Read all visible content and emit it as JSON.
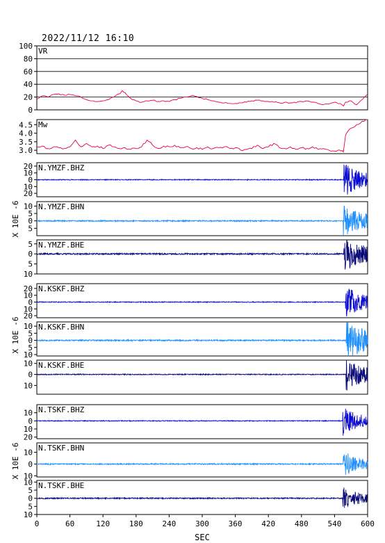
{
  "timestamp": "2022/11/12 16:10",
  "chart_data": {
    "type": "line",
    "xlabel": "SEC",
    "xlim": [
      0,
      600
    ],
    "xticks": [
      0,
      60,
      120,
      180,
      240,
      300,
      360,
      420,
      480,
      540,
      600
    ],
    "unit_label": "X 10E -6",
    "panels": [
      {
        "label": "VR",
        "kind": "vr",
        "ylim": [
          0,
          100
        ],
        "yticks": [
          0,
          20,
          40,
          60,
          80,
          100
        ],
        "color": "#e8003a",
        "grid": true,
        "series": {
          "x": [
            0,
            10,
            20,
            30,
            40,
            50,
            60,
            70,
            80,
            90,
            100,
            110,
            120,
            130,
            140,
            150,
            155,
            160,
            170,
            180,
            190,
            200,
            210,
            220,
            230,
            240,
            250,
            260,
            270,
            280,
            290,
            300,
            310,
            320,
            330,
            340,
            350,
            360,
            370,
            380,
            390,
            400,
            410,
            420,
            430,
            440,
            450,
            460,
            470,
            480,
            490,
            500,
            510,
            520,
            530,
            540,
            550,
            556,
            560,
            570,
            580,
            590,
            600
          ],
          "y": [
            17,
            22,
            20,
            24,
            25,
            23,
            24,
            22,
            20,
            16,
            14,
            13,
            14,
            16,
            20,
            25,
            30,
            27,
            18,
            14,
            12,
            14,
            15,
            13,
            14,
            13,
            16,
            18,
            20,
            22,
            21,
            18,
            16,
            14,
            12,
            11,
            10,
            10,
            11,
            12,
            14,
            15,
            14,
            13,
            12,
            11,
            12,
            11,
            11,
            13,
            14,
            12,
            10,
            8,
            9,
            12,
            10,
            6,
            12,
            14,
            8,
            16,
            24
          ]
        }
      },
      {
        "label": "Mw",
        "kind": "mw",
        "ylim": [
          2.8,
          4.8
        ],
        "yticks": [
          3.0,
          3.5,
          4.0,
          4.5
        ],
        "ytick_labels": [
          "3.0",
          "3.5",
          "4.0",
          "4.5"
        ],
        "color": "#e8003a",
        "series": {
          "x": [
            0,
            10,
            20,
            30,
            40,
            50,
            60,
            70,
            80,
            90,
            100,
            110,
            120,
            130,
            140,
            150,
            160,
            170,
            180,
            190,
            200,
            210,
            220,
            230,
            240,
            250,
            260,
            270,
            280,
            290,
            300,
            310,
            320,
            330,
            340,
            350,
            360,
            370,
            380,
            390,
            400,
            410,
            420,
            430,
            440,
            450,
            460,
            470,
            480,
            490,
            500,
            510,
            520,
            530,
            540,
            550,
            556,
            560,
            570,
            580,
            590,
            600
          ],
          "y": [
            3.2,
            3.25,
            3.1,
            3.2,
            3.15,
            3.1,
            3.2,
            3.6,
            3.2,
            3.4,
            3.2,
            3.25,
            3.1,
            3.3,
            3.2,
            3.1,
            3.15,
            3.05,
            3.1,
            3.2,
            3.6,
            3.3,
            3.1,
            3.25,
            3.2,
            3.3,
            3.15,
            3.2,
            3.1,
            3.15,
            3.05,
            3.2,
            3.1,
            3.15,
            3.2,
            3.1,
            3.15,
            3.0,
            3.05,
            3.1,
            3.3,
            3.1,
            3.2,
            3.4,
            3.15,
            3.1,
            3.2,
            3.05,
            3.15,
            3.1,
            3.2,
            3.05,
            3.1,
            3.0,
            2.95,
            3.0,
            2.9,
            3.9,
            4.3,
            4.5,
            4.7,
            4.8
          ]
        }
      },
      {
        "label": "N.YMZF.BHZ",
        "kind": "wave",
        "ylim": [
          -25,
          25
        ],
        "yticks": [
          -20,
          -10,
          0,
          10,
          20
        ],
        "ytick_labels": [
          "20",
          "10",
          "0",
          "10",
          "20"
        ],
        "color": "#0a0ad2",
        "onset": 557,
        "noise": 0.6,
        "amp": 22,
        "decay": 0.055,
        "seed": 11
      },
      {
        "label": "N.YMZF.BHN",
        "kind": "wave",
        "ylim": [
          -10,
          13
        ],
        "yticks": [
          -5,
          0,
          5,
          10
        ],
        "ytick_labels": [
          "5",
          "0",
          "5",
          "10"
        ],
        "color": "#1e90ff",
        "onset": 556,
        "noise": 0.4,
        "amp": 9,
        "decay": 0.04,
        "seed": 23
      },
      {
        "label": "N.YMZF.BHE",
        "kind": "wave",
        "ylim": [
          -10,
          7
        ],
        "yticks": [
          -10,
          -5,
          0,
          5
        ],
        "ytick_labels": [
          "10",
          "5",
          "0",
          "5"
        ],
        "color": "#0a0a78",
        "onset": 557,
        "noise": 0.35,
        "amp": 7,
        "decay": 0.035,
        "seed": 37
      },
      {
        "label": "N.KSKF.BHZ",
        "kind": "wave",
        "ylim": [
          -23,
          27
        ],
        "yticks": [
          -20,
          -10,
          0,
          10,
          20
        ],
        "ytick_labels": [
          "20",
          "10",
          "0",
          "10",
          "20"
        ],
        "color": "#0a0ad2",
        "onset": 560,
        "noise": 0.6,
        "amp": 20,
        "decay": 0.05,
        "seed": 41
      },
      {
        "label": "N.KSKF.BHN",
        "kind": "wave",
        "ylim": [
          -11,
          13
        ],
        "yticks": [
          -10,
          -5,
          0,
          5,
          10
        ],
        "ytick_labels": [
          "10",
          "5",
          "0",
          "5",
          "10"
        ],
        "color": "#1e90ff",
        "onset": 561,
        "noise": 0.45,
        "amp": 11,
        "decay": 0.03,
        "seed": 53
      },
      {
        "label": "N.KSKF.BHE",
        "kind": "wave",
        "ylim": [
          -18,
          13
        ],
        "yticks": [
          -10,
          0,
          10
        ],
        "ytick_labels": [
          "10",
          "0",
          "10"
        ],
        "color": "#0a0a78",
        "onset": 561,
        "noise": 0.4,
        "amp": 11,
        "decay": 0.035,
        "seed": 67
      },
      {
        "label": "N.TSKF.BHZ",
        "kind": "wave",
        "ylim": [
          -22,
          20
        ],
        "yticks": [
          -20,
          -10,
          0,
          10
        ],
        "ytick_labels": [
          "20",
          "10",
          "0",
          "10"
        ],
        "color": "#0a0ad2",
        "onset": 555,
        "noise": 0.5,
        "amp": 14,
        "decay": 0.045,
        "seed": 71
      },
      {
        "label": "N.TSKF.BHN",
        "kind": "wave",
        "ylim": [
          -11,
          18
        ],
        "yticks": [
          -10,
          0,
          10
        ],
        "ytick_labels": [
          "10",
          "0",
          "10"
        ],
        "color": "#1e90ff",
        "onset": 556,
        "noise": 0.5,
        "amp": 8,
        "decay": 0.035,
        "seed": 83
      },
      {
        "label": "N.TSKF.BHE",
        "kind": "wave",
        "ylim": [
          -10,
          11
        ],
        "yticks": [
          -10,
          -5,
          0,
          5,
          10
        ],
        "ytick_labels": [
          "10",
          "5",
          "0",
          "5",
          "10"
        ],
        "color": "#0a0a78",
        "onset": 555,
        "noise": 0.35,
        "amp": 5,
        "decay": 0.04,
        "seed": 97
      }
    ]
  }
}
